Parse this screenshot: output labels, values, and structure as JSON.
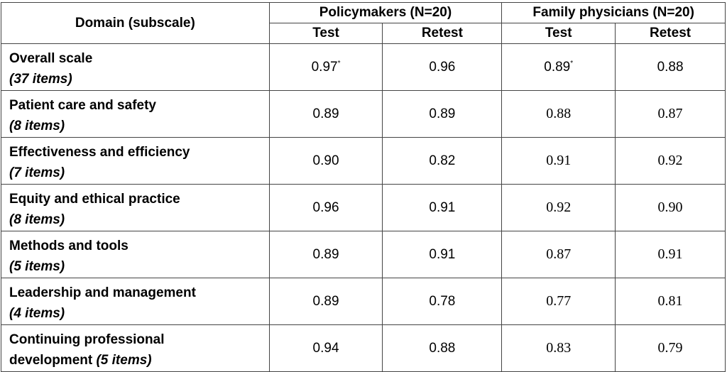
{
  "header": {
    "domain": "Domain (subscale)",
    "groups": [
      "Policymakers (N=20)",
      "Family physicians (N=20)"
    ],
    "sub": [
      "Test",
      "Retest",
      "Test",
      "Retest"
    ]
  },
  "rows": [
    {
      "name": "Overall scale",
      "items": "(37 items)",
      "values": [
        "0.97",
        "0.96",
        "0.89",
        "0.88"
      ],
      "marks": [
        "*",
        "",
        "*",
        ""
      ]
    },
    {
      "name": "Patient care and safety",
      "items": "(8 items)",
      "values": [
        "0.89",
        "0.89",
        "0.88",
        "0.87"
      ],
      "marks": [
        "",
        "",
        "",
        ""
      ]
    },
    {
      "name": "Effectiveness and efficiency",
      "items": "(7 items)",
      "values": [
        "0.90",
        "0.82",
        "0.91",
        "0.92"
      ],
      "marks": [
        "",
        "",
        "",
        ""
      ]
    },
    {
      "name": "Equity and ethical practice",
      "items": "(8 items)",
      "values": [
        "0.96",
        "0.91",
        "0.92",
        "0.90"
      ],
      "marks": [
        "",
        "",
        "",
        ""
      ]
    },
    {
      "name": "Methods and tools",
      "items": "(5 items)",
      "values": [
        "0.89",
        "0.91",
        "0.87",
        "0.91"
      ],
      "marks": [
        "",
        "",
        "",
        ""
      ]
    },
    {
      "name": "Leadership and management",
      "items": "(4 items)",
      "values": [
        "0.89",
        "0.78",
        "0.77",
        "0.81"
      ],
      "marks": [
        "",
        "",
        "",
        ""
      ]
    },
    {
      "name": "Continuing professional",
      "name2": "development",
      "items": "(5 items)",
      "values": [
        "0.94",
        "0.88",
        "0.83",
        "0.79"
      ],
      "marks": [
        "",
        "",
        "",
        ""
      ]
    }
  ]
}
